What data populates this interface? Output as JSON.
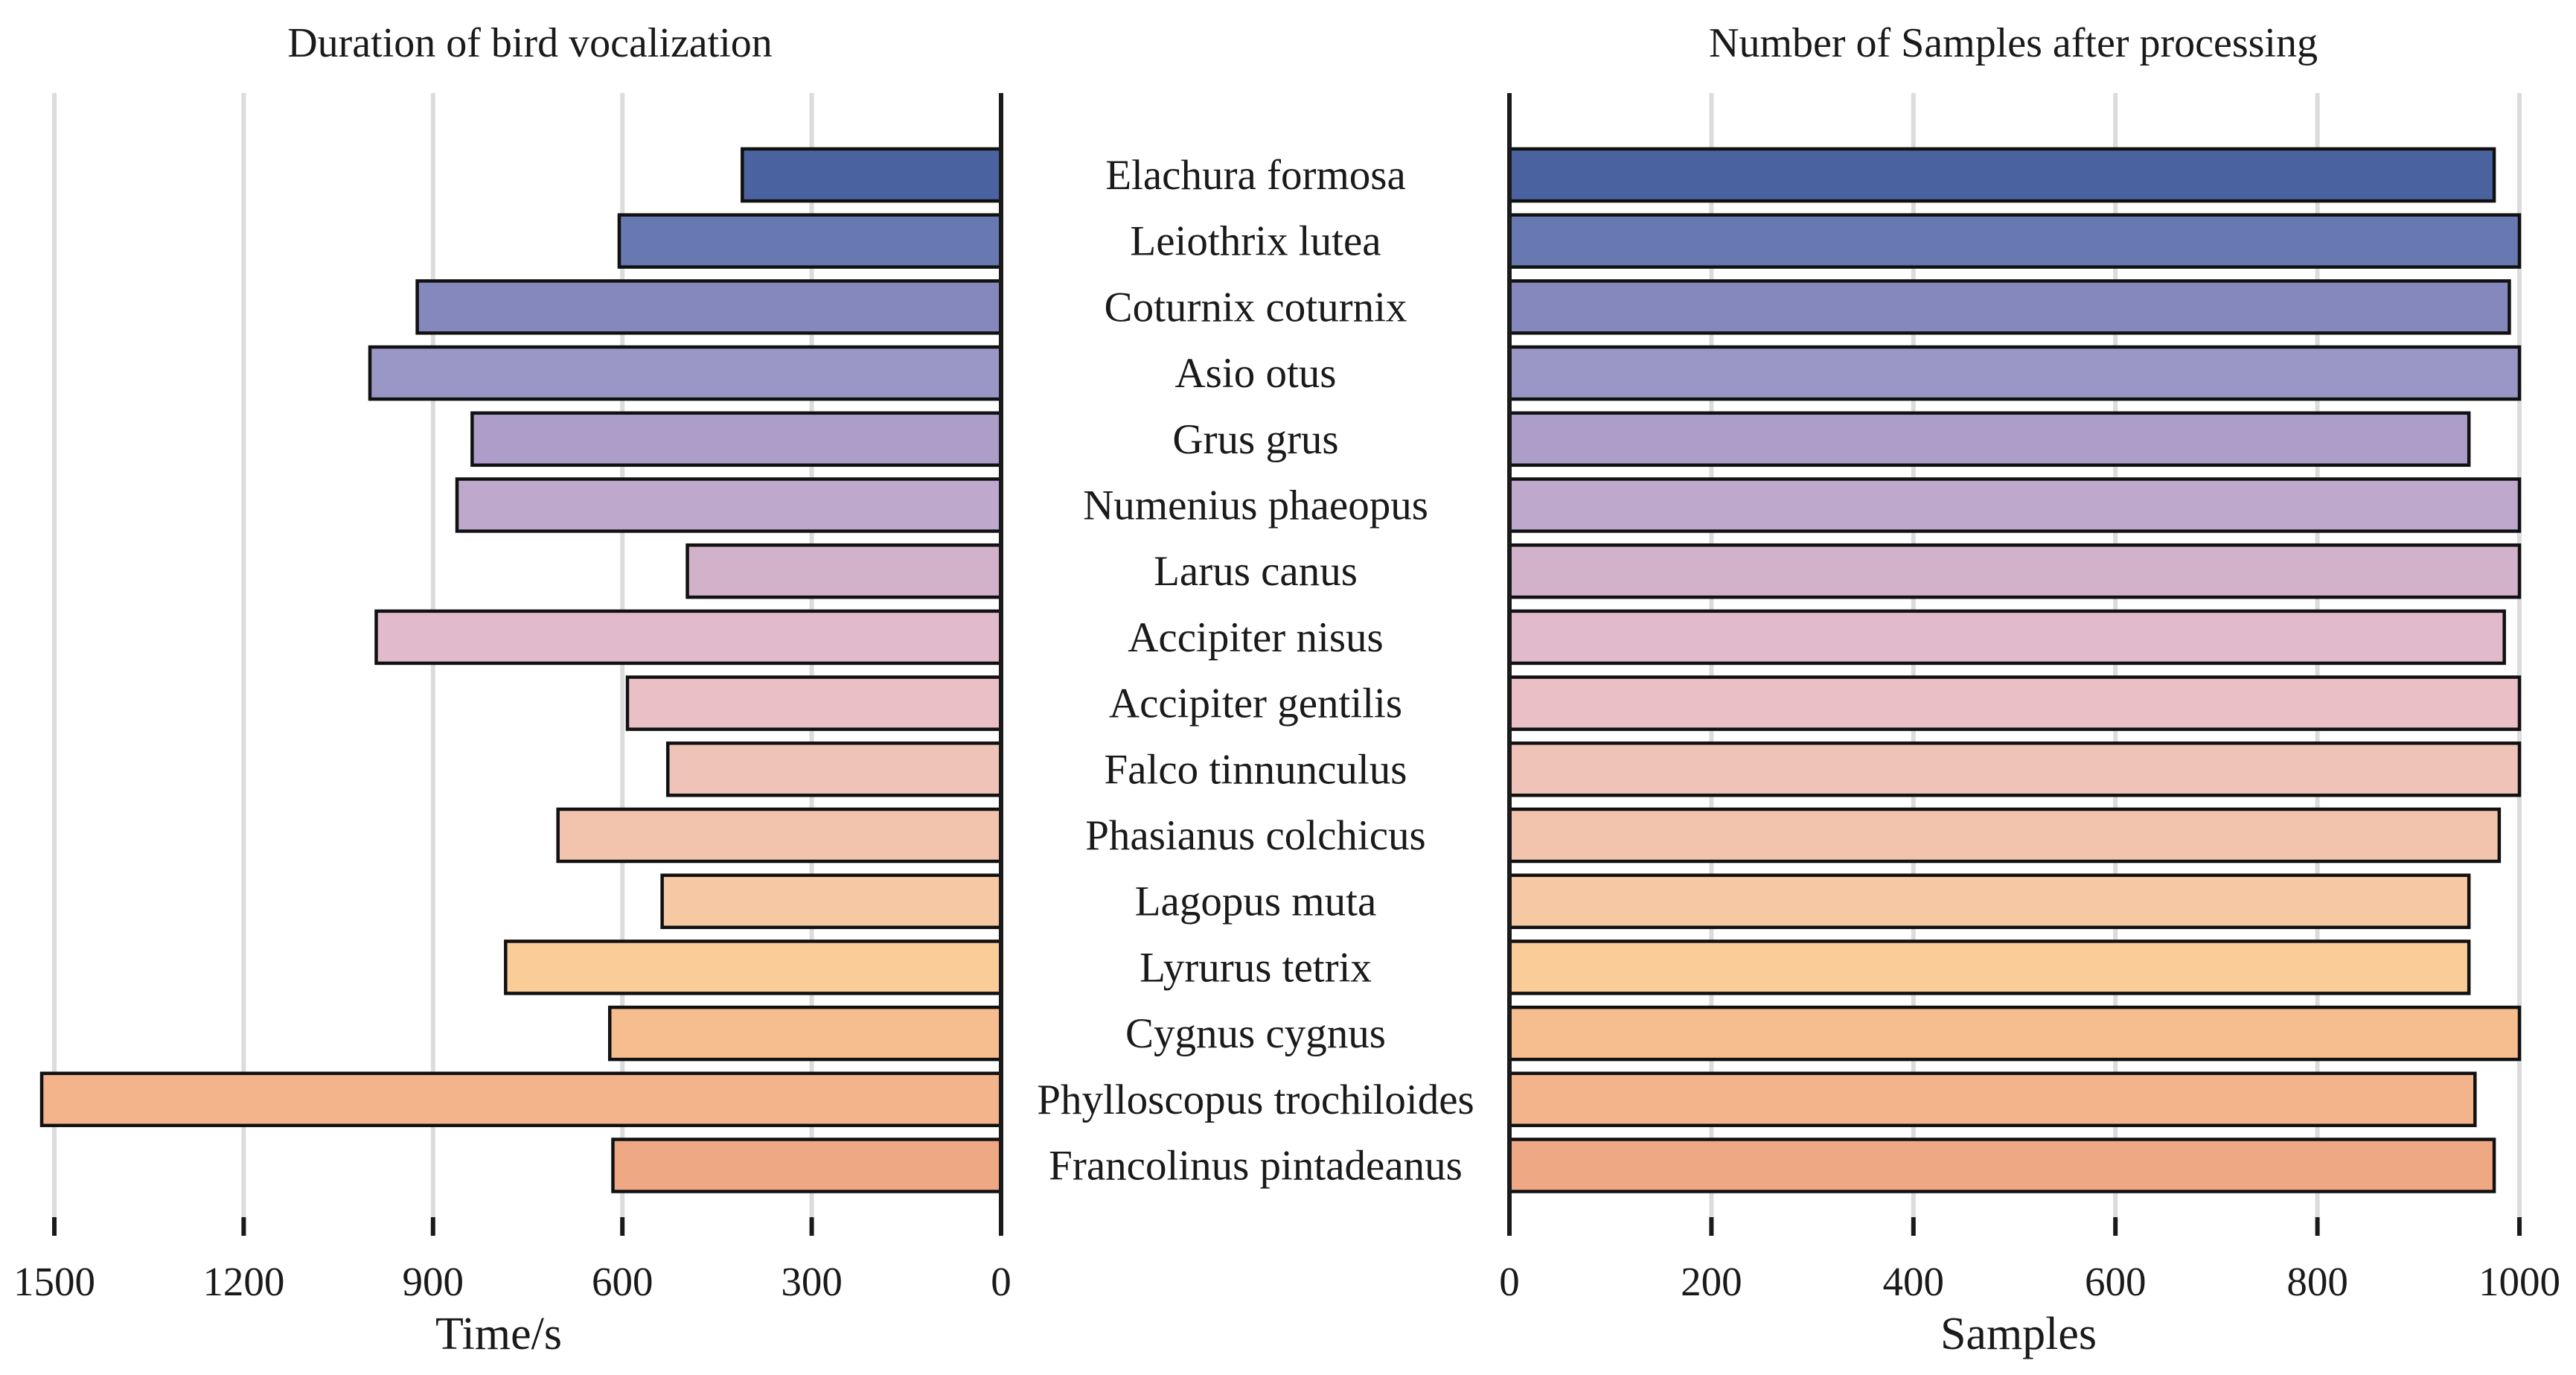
{
  "chart_data": [
    {
      "type": "bar",
      "orientation": "horizontal",
      "direction": "right-to-left",
      "title": "Duration of bird vocalization",
      "xlabel": "Time/s",
      "ylabel": "",
      "xlim": [
        0,
        1520
      ],
      "xticks": [
        1500,
        1200,
        900,
        600,
        300,
        0
      ],
      "grid": "vertical",
      "categories": [
        "Elachura formosa",
        "Leiothrix lutea",
        "Coturnix coturnix",
        "Asio otus",
        "Grus grus",
        "Numenius phaeopus",
        "Larus canus",
        "Accipiter nisus",
        "Accipiter gentilis",
        "Falco tinnunculus",
        "Phasianus colchicus",
        "Lagopus muta",
        "Lyrurus tetrix",
        "Cygnus cygnus",
        "Phylloscopus trochiloides",
        "Francolinus pintadeanus"
      ],
      "values": [
        410,
        605,
        925,
        1000,
        838,
        862,
        497,
        990,
        592,
        528,
        702,
        537,
        785,
        620,
        1520,
        615
      ],
      "colors": [
        "#4a62a0",
        "#6779b0",
        "#8488bc",
        "#9a97c7",
        "#ac9ec9",
        "#bea8cc",
        "#d2b2cb",
        "#e1bacb",
        "#ebbfc6",
        "#efc3b7",
        "#f2c4ad",
        "#f6c9a4",
        "#facc98",
        "#f6bd8f",
        "#f3b38b",
        "#eea884"
      ]
    },
    {
      "type": "bar",
      "orientation": "horizontal",
      "direction": "left-to-right",
      "title": "Number of Samples after processing",
      "xlabel": "Samples",
      "ylabel": "",
      "xlim": [
        0,
        1000
      ],
      "xticks": [
        0,
        200,
        400,
        600,
        800,
        1000
      ],
      "grid": "vertical",
      "categories": [
        "Elachura formosa",
        "Leiothrix lutea",
        "Coturnix coturnix",
        "Asio otus",
        "Grus grus",
        "Numenius phaeopus",
        "Larus canus",
        "Accipiter nisus",
        "Accipiter gentilis",
        "Falco tinnunculus",
        "Phasianus colchicus",
        "Lagopus muta",
        "Lyrurus tetrix",
        "Cygnus cygnus",
        "Phylloscopus trochiloides",
        "Francolinus pintadeanus"
      ],
      "values": [
        975,
        1000,
        990,
        1000,
        950,
        1000,
        1000,
        985,
        1000,
        1000,
        980,
        950,
        950,
        1000,
        956,
        975
      ],
      "colors": [
        "#4a62a0",
        "#6779b0",
        "#8488bc",
        "#9a97c7",
        "#ac9ec9",
        "#bea8cc",
        "#d2b2cb",
        "#e1bacb",
        "#ebbfc6",
        "#efc3b7",
        "#f2c4ad",
        "#f6c9a4",
        "#facc98",
        "#f6bd8f",
        "#f3b38b",
        "#eea884"
      ]
    }
  ]
}
